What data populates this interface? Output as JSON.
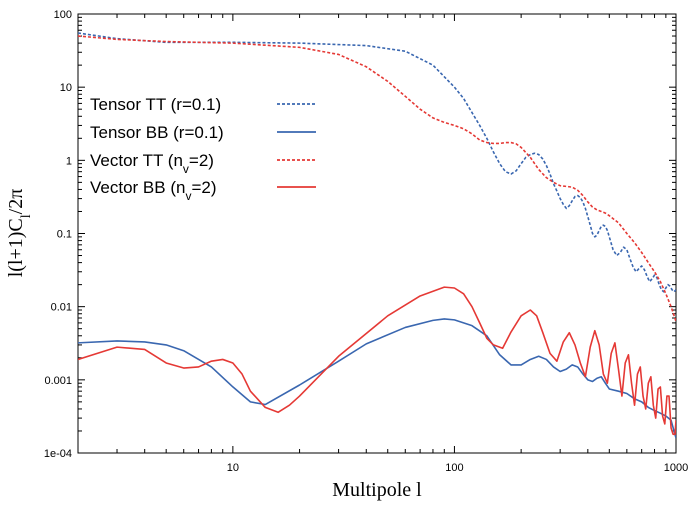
{
  "chart_data": {
    "type": "line",
    "title": "",
    "xlabel": "Multipole l",
    "ylabel": "l(l+1)C_l/2π",
    "xscale": "log",
    "yscale": "log",
    "xlim": [
      2,
      1000
    ],
    "ylim": [
      0.0001,
      100
    ],
    "grid": false,
    "legend_position": "upper-left",
    "x_tick_labels": [
      "10",
      "100",
      "1000"
    ],
    "y_tick_labels": [
      "1e-04",
      "0.001",
      "0.01",
      "0.1",
      "1",
      "10",
      "100"
    ],
    "colors": {
      "tensor": "#3a67b0",
      "vector": "#e53935"
    },
    "series": [
      {
        "name": "Tensor TT (r=0.1)",
        "style": "dashed",
        "color": "#3a67b0",
        "x": [
          2,
          3,
          5,
          10,
          20,
          40,
          60,
          80,
          100,
          110,
          120,
          130,
          140,
          150,
          160,
          170,
          180,
          190,
          200,
          210,
          220,
          230,
          240,
          250,
          260,
          270,
          280,
          290,
          300,
          310,
          320,
          330,
          340,
          350,
          360,
          370,
          380,
          390,
          400,
          410,
          420,
          430,
          440,
          450,
          460,
          470,
          480,
          490,
          500,
          520,
          540,
          560,
          580,
          600,
          620,
          640,
          660,
          680,
          700,
          720,
          740,
          760,
          780,
          800,
          820,
          840,
          860,
          880,
          900,
          920,
          940,
          960,
          980,
          1000
        ],
        "y": [
          55,
          46,
          41,
          41,
          40,
          37,
          31,
          20,
          10,
          7,
          4.5,
          3,
          2,
          1.3,
          0.9,
          0.7,
          0.65,
          0.72,
          0.9,
          1.1,
          1.2,
          1.25,
          1.2,
          1.05,
          0.85,
          0.65,
          0.48,
          0.38,
          0.3,
          0.25,
          0.22,
          0.24,
          0.28,
          0.32,
          0.33,
          0.31,
          0.27,
          0.22,
          0.17,
          0.13,
          0.1,
          0.09,
          0.095,
          0.11,
          0.125,
          0.13,
          0.125,
          0.11,
          0.09,
          0.06,
          0.05,
          0.055,
          0.065,
          0.06,
          0.045,
          0.035,
          0.03,
          0.033,
          0.036,
          0.032,
          0.026,
          0.022,
          0.024,
          0.027,
          0.025,
          0.02,
          0.017,
          0.016,
          0.018,
          0.02,
          0.019,
          0.017,
          0.016,
          0.017
        ]
      },
      {
        "name": "Tensor BB (r=0.1)",
        "style": "solid",
        "color": "#3a67b0",
        "x": [
          2,
          3,
          4,
          5,
          6,
          8,
          10,
          12,
          14,
          20,
          30,
          40,
          60,
          80,
          90,
          100,
          120,
          140,
          160,
          180,
          200,
          220,
          240,
          260,
          280,
          300,
          320,
          340,
          360,
          380,
          400,
          420,
          440,
          460,
          480,
          500,
          550,
          600,
          650,
          700,
          750,
          800,
          850,
          900,
          950,
          1000
        ],
        "y": [
          0.0032,
          0.0034,
          0.0033,
          0.003,
          0.0025,
          0.0015,
          0.0008,
          0.0005,
          0.00046,
          0.00085,
          0.0018,
          0.0031,
          0.0052,
          0.0065,
          0.0068,
          0.0066,
          0.0055,
          0.004,
          0.0022,
          0.0016,
          0.0016,
          0.0019,
          0.0021,
          0.0019,
          0.0015,
          0.0013,
          0.0014,
          0.0016,
          0.0015,
          0.0012,
          0.001,
          0.00095,
          0.00105,
          0.0011,
          0.0009,
          0.00075,
          0.0007,
          0.00065,
          0.00055,
          0.0005,
          0.00042,
          0.00038,
          0.00035,
          0.00032,
          0.00028,
          0.00016
        ]
      },
      {
        "name": "Vector TT (n_v=2)",
        "style": "dashed",
        "color": "#e53935",
        "x": [
          2,
          3,
          5,
          10,
          20,
          30,
          40,
          50,
          60,
          70,
          80,
          90,
          100,
          110,
          120,
          130,
          140,
          150,
          160,
          170,
          180,
          190,
          200,
          220,
          240,
          260,
          280,
          300,
          320,
          340,
          360,
          380,
          400,
          420,
          440,
          460,
          480,
          500,
          550,
          600,
          650,
          700,
          750,
          800,
          850,
          900,
          950,
          1000
        ],
        "y": [
          50,
          45,
          42,
          40,
          35,
          28,
          19,
          12,
          7.5,
          5,
          3.8,
          3.3,
          3,
          2.7,
          2.3,
          1.9,
          1.75,
          1.7,
          1.7,
          1.75,
          1.75,
          1.68,
          1.5,
          1.1,
          0.75,
          0.58,
          0.5,
          0.45,
          0.44,
          0.43,
          0.39,
          0.33,
          0.27,
          0.23,
          0.21,
          0.2,
          0.19,
          0.175,
          0.14,
          0.1,
          0.075,
          0.055,
          0.04,
          0.03,
          0.022,
          0.015,
          0.01,
          0.0063
        ]
      },
      {
        "name": "Vector BB (n_v=2)",
        "style": "solid",
        "color": "#e53935",
        "x": [
          2,
          3,
          4,
          5,
          6,
          7,
          8,
          9,
          10,
          11,
          12,
          14,
          16,
          18,
          20,
          30,
          50,
          70,
          90,
          100,
          110,
          120,
          130,
          140,
          150,
          165,
          180,
          200,
          220,
          235,
          250,
          270,
          290,
          310,
          330,
          350,
          370,
          390,
          410,
          430,
          450,
          470,
          490,
          510,
          530,
          550,
          570,
          590,
          610,
          630,
          650,
          670,
          690,
          710,
          730,
          750,
          770,
          790,
          810,
          830,
          850,
          870,
          890,
          910,
          930,
          950,
          970,
          990,
          1000
        ],
        "y": [
          0.0019,
          0.0028,
          0.0026,
          0.0017,
          0.00145,
          0.0015,
          0.0018,
          0.0019,
          0.0017,
          0.0012,
          0.0007,
          0.00042,
          0.00036,
          0.00045,
          0.0006,
          0.0021,
          0.0075,
          0.014,
          0.0185,
          0.018,
          0.015,
          0.01,
          0.006,
          0.0037,
          0.003,
          0.0027,
          0.0045,
          0.0075,
          0.009,
          0.0075,
          0.0045,
          0.0023,
          0.0018,
          0.0033,
          0.0044,
          0.003,
          0.0017,
          0.0011,
          0.0028,
          0.0047,
          0.003,
          0.0012,
          0.0009,
          0.0023,
          0.0032,
          0.0014,
          0.0006,
          0.0017,
          0.0022,
          0.0009,
          0.00045,
          0.0012,
          0.0015,
          0.0006,
          0.0004,
          0.0009,
          0.0011,
          0.00045,
          0.0003,
          0.00075,
          0.0008,
          0.00032,
          0.00025,
          0.0006,
          0.0006,
          0.00022,
          0.00018,
          0.00018,
          0.00028
        ]
      }
    ]
  }
}
